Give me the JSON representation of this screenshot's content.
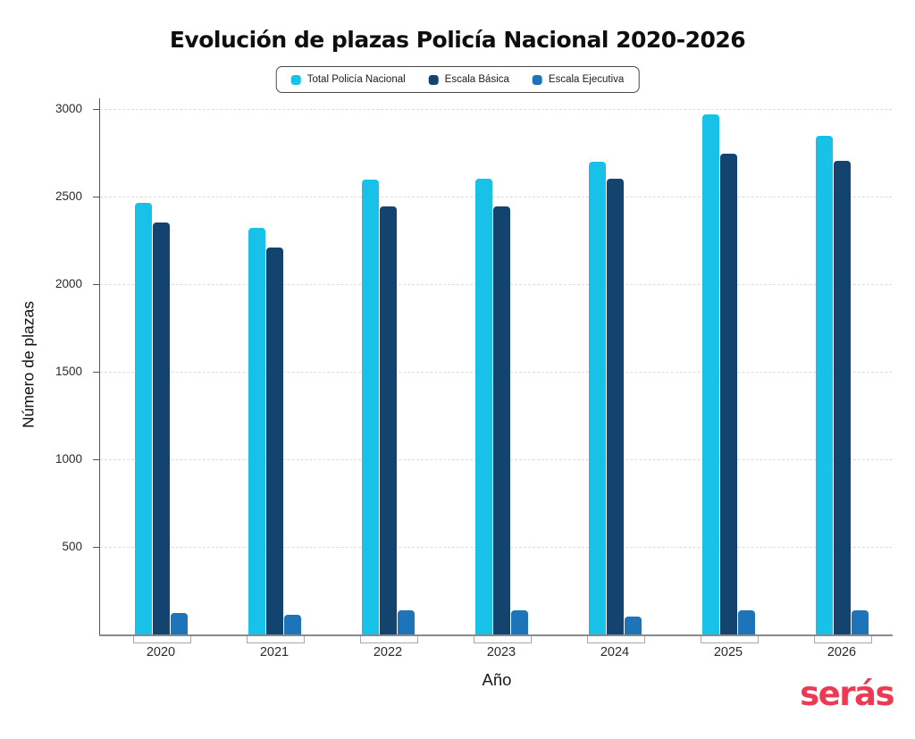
{
  "header": {
    "title": "Evolución de plazas Policía Nacional 2020-2026"
  },
  "chart_data": {
    "type": "bar",
    "title": "Evolución de plazas Policía Nacional 2020-2026",
    "categories": [
      "2020",
      "2021",
      "2022",
      "2023",
      "2024",
      "2025",
      "2026"
    ],
    "series": [
      {
        "name": "Total Policía Nacional",
        "color": "#18c1e8",
        "values": [
          2466,
          2320,
          2595,
          2600,
          2700,
          2970,
          2845
        ]
      },
      {
        "name": "Escala Básica",
        "color": "#134470",
        "values": [
          2350,
          2210,
          2445,
          2445,
          2600,
          2745,
          2705
        ]
      },
      {
        "name": "Escala Ejecutiva",
        "color": "#1d74b9",
        "values": [
          125,
          110,
          140,
          140,
          100,
          140,
          140
        ]
      }
    ],
    "xlabel": "Año",
    "ylabel": "Número de plazas",
    "ylim": [
      0,
      3000
    ],
    "yticks": [
      500,
      1000,
      1500,
      2000,
      2500,
      3000
    ],
    "grid": true,
    "legend_position": "top"
  },
  "branding": {
    "logo_text": "serás",
    "logo_color": "#ed3a53"
  }
}
